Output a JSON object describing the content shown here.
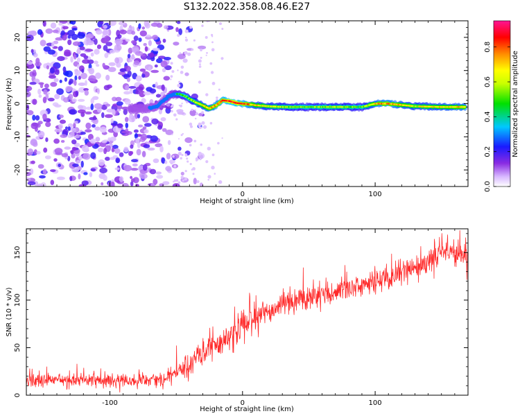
{
  "title": "S132.2022.358.08.46.E27",
  "colors": {
    "snr_line": "#ff2a2a",
    "background": "#ffffff",
    "axes": "#000000"
  },
  "chart_data": [
    {
      "type": "heatmap",
      "title": "S132.2022.358.08.46.E27",
      "xlabel": "Height of straight line (km)",
      "ylabel": "Frequency (Hz)",
      "xlim": [
        -163,
        170
      ],
      "ylim": [
        -25,
        25
      ],
      "x_ticks": [
        -100,
        0,
        100
      ],
      "y_ticks": [
        -20,
        -10,
        0,
        10,
        20
      ],
      "colorbar": {
        "label": "Normalized spectral amplitude",
        "range": [
          0,
          0.95
        ],
        "ticks": [
          0.0,
          0.2,
          0.4,
          0.6,
          0.8
        ],
        "colormap": "rainbow (white-violet-blue-cyan-green-yellow-red-magenta)"
      },
      "signal_track": {
        "description_x": "x in km, y is peak frequency in Hz, a is relative amplitude",
        "x": [
          -85,
          -75,
          -65,
          -55,
          -48,
          -42,
          -36,
          -30,
          -25,
          -20,
          -15,
          -10,
          -5,
          0,
          5,
          10,
          20,
          30,
          50,
          70,
          90,
          100,
          110,
          130,
          150,
          168
        ],
        "y": [
          -1.5,
          -1.5,
          -1.0,
          2.5,
          3.0,
          2.0,
          0.5,
          -0.5,
          -1.5,
          -0.5,
          1.0,
          0.8,
          0.2,
          0.0,
          -0.2,
          -0.5,
          -0.8,
          -1.0,
          -1.0,
          -1.0,
          -1.0,
          0.0,
          0.0,
          -0.8,
          -1.0,
          -1.0
        ],
        "a": [
          0.1,
          0.15,
          0.25,
          0.35,
          0.45,
          0.55,
          0.6,
          0.7,
          0.75,
          0.8,
          0.85,
          0.9,
          0.9,
          0.85,
          0.8,
          0.7,
          0.65,
          0.6,
          0.55,
          0.6,
          0.55,
          0.75,
          0.8,
          0.65,
          0.7,
          0.75
        ]
      },
      "noise_region_x": [
        -163,
        -55
      ]
    },
    {
      "type": "line",
      "xlabel": "Height of straight line (km)",
      "ylabel": "SNR (10 * v/v)",
      "xlim": [
        -163,
        170
      ],
      "ylim": [
        0,
        175
      ],
      "x_ticks": [
        -100,
        0,
        100
      ],
      "y_ticks": [
        0,
        50,
        100,
        150
      ],
      "trend": {
        "x": [
          -163,
          -120,
          -80,
          -60,
          -45,
          -30,
          -10,
          0,
          20,
          40,
          60,
          80,
          100,
          120,
          140,
          150,
          160,
          170
        ],
        "y": [
          15,
          16,
          15,
          18,
          25,
          45,
          60,
          75,
          90,
          100,
          105,
          112,
          118,
          128,
          140,
          150,
          148,
          145
        ]
      },
      "noise_amplitude": {
        "x": [
          -163,
          -60,
          -40,
          0,
          60,
          120,
          170
        ],
        "y": [
          8,
          8,
          14,
          18,
          14,
          14,
          16
        ]
      },
      "seed": 132
    }
  ]
}
